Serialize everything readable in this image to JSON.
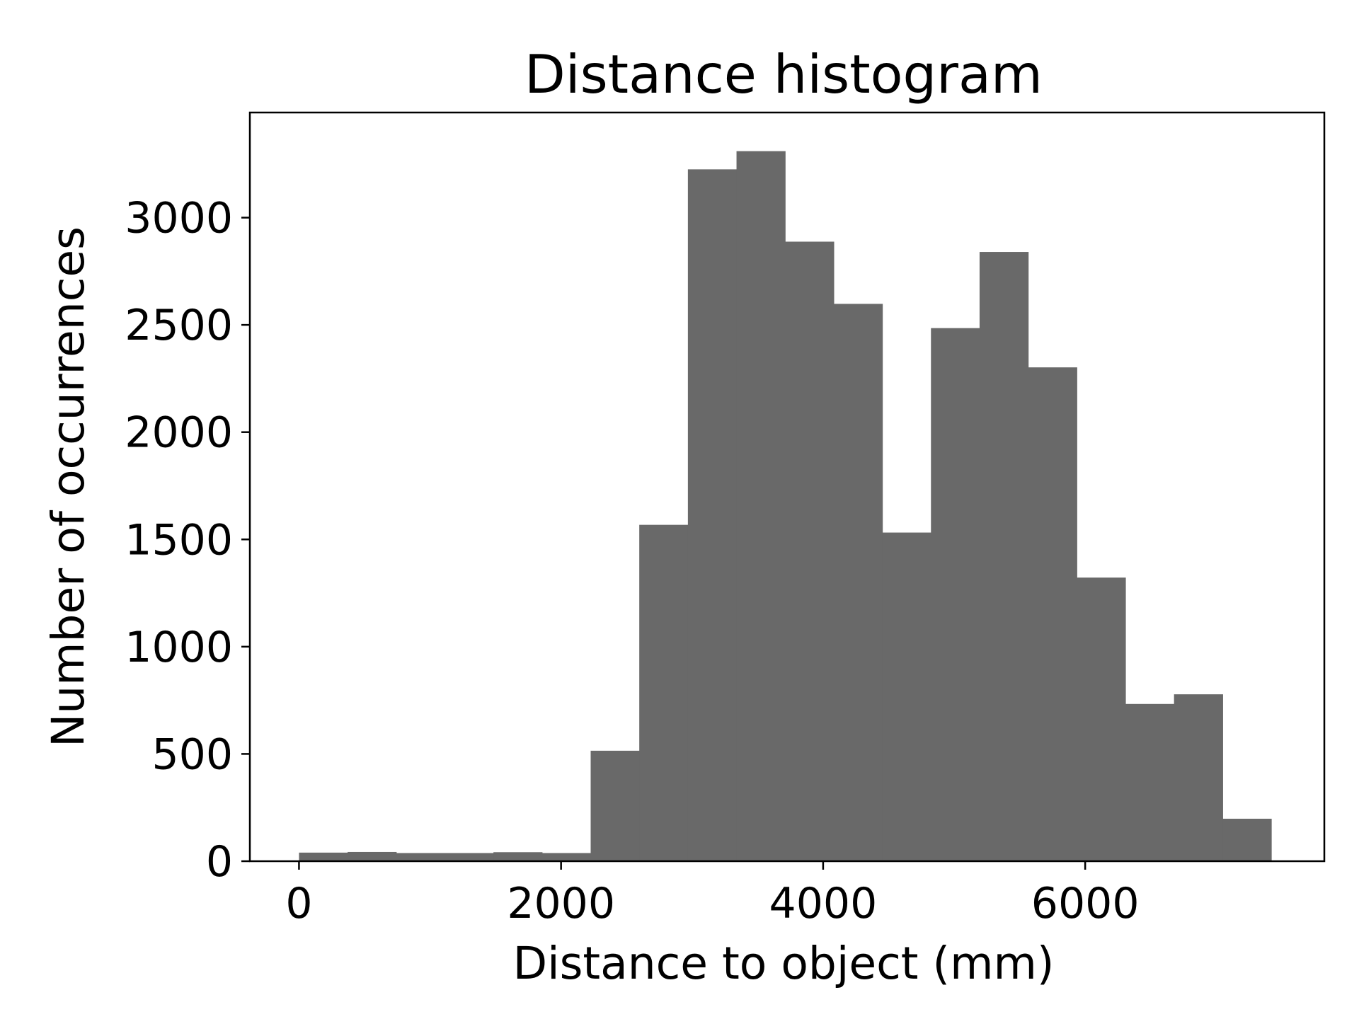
{
  "chart_data": {
    "type": "bar",
    "title": "Distance histogram",
    "xlabel": "Distance to object (mm)",
    "ylabel": "Number of occurrences",
    "xlim": [
      -375,
      7825
    ],
    "ylim": [
      0,
      3490
    ],
    "xticks": [
      0,
      2000,
      4000,
      6000
    ],
    "xtick_labels": [
      "0",
      "2000",
      "4000",
      "6000"
    ],
    "yticks": [
      0,
      500,
      1000,
      1500,
      2000,
      2500,
      3000
    ],
    "ytick_labels": [
      "0",
      "500",
      "1000",
      "1500",
      "2000",
      "2500",
      "3000"
    ],
    "bin_edges": [
      0,
      371,
      742,
      1113,
      1484,
      1855,
      2226,
      2597,
      2968,
      3339,
      3710,
      4081,
      4452,
      4823,
      5194,
      5565,
      5936,
      6307,
      6678,
      7049,
      7420
    ],
    "values": [
      40,
      43,
      38,
      38,
      42,
      38,
      515,
      1568,
      3225,
      3310,
      2888,
      2598,
      1532,
      2485,
      2840,
      2302,
      1322,
      733,
      778,
      198
    ],
    "bar_color": "#696969",
    "grid": false,
    "legend": "none"
  }
}
